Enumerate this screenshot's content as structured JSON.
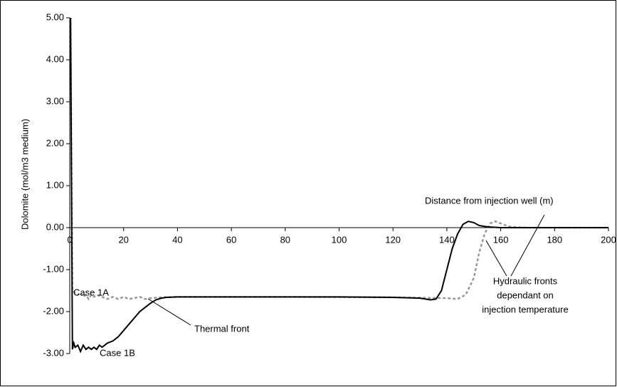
{
  "chart_data": {
    "type": "line",
    "y_label": "Dolomite (mol/m3 medium)",
    "x_label": "Distance from injection well (m)",
    "xlim": [
      0,
      200
    ],
    "xticks": [
      0,
      20,
      40,
      60,
      80,
      100,
      120,
      140,
      160,
      180,
      200
    ],
    "ylim": [
      -3,
      5
    ],
    "yticks": [
      {
        "value": -3,
        "label": "-3.00"
      },
      {
        "value": -2,
        "label": "-2.00"
      },
      {
        "value": -1,
        "label": "-1.00"
      },
      {
        "value": 0,
        "label": "0.00"
      },
      {
        "value": 1,
        "label": "1.00"
      },
      {
        "value": 2,
        "label": "2.00"
      },
      {
        "value": 3,
        "label": "3.00"
      },
      {
        "value": 4,
        "label": "4.00"
      },
      {
        "value": 5,
        "label": "5.00"
      }
    ],
    "series": [
      {
        "name": "Case 1A",
        "color": "#999999",
        "dash": true,
        "x": [
          0.3,
          1,
          2,
          3,
          4,
          5,
          6,
          7,
          8,
          9,
          10,
          12,
          14,
          16,
          18,
          20,
          22,
          24,
          26,
          28,
          30,
          34,
          40,
          80,
          120,
          140,
          144,
          147,
          150,
          152,
          154,
          156,
          158,
          160,
          163,
          166,
          170,
          200
        ],
        "values": [
          5.0,
          -1.5,
          -1.55,
          -1.6,
          -1.55,
          -1.65,
          -1.6,
          -1.7,
          -1.6,
          -1.65,
          -1.6,
          -1.65,
          -1.7,
          -1.65,
          -1.7,
          -1.65,
          -1.7,
          -1.68,
          -1.65,
          -1.7,
          -1.68,
          -1.66,
          -1.65,
          -1.65,
          -1.66,
          -1.68,
          -1.7,
          -1.6,
          -1.2,
          -0.6,
          -0.15,
          0.1,
          0.15,
          0.1,
          0.03,
          0.01,
          0,
          0
        ]
      },
      {
        "name": "Case 1B",
        "color": "#000000",
        "dash": false,
        "x": [
          0.3,
          1,
          1.5,
          2,
          3,
          4,
          5,
          6,
          7,
          8,
          9,
          10,
          11,
          12,
          14,
          16,
          18,
          20,
          22,
          24,
          26,
          28,
          30,
          32,
          34,
          36,
          40,
          60,
          80,
          100,
          120,
          130,
          134,
          136,
          138,
          140,
          142,
          144,
          146,
          148,
          150,
          152,
          155,
          160,
          200
        ],
        "values": [
          5.0,
          -2.9,
          -2.75,
          -2.85,
          -2.8,
          -2.95,
          -2.8,
          -2.9,
          -2.85,
          -2.9,
          -2.85,
          -2.9,
          -2.8,
          -2.85,
          -2.75,
          -2.7,
          -2.6,
          -2.45,
          -2.3,
          -2.15,
          -2.0,
          -1.9,
          -1.8,
          -1.72,
          -1.68,
          -1.66,
          -1.65,
          -1.65,
          -1.65,
          -1.65,
          -1.66,
          -1.68,
          -1.72,
          -1.7,
          -1.5,
          -1.0,
          -0.5,
          -0.15,
          0.08,
          0.15,
          0.12,
          0.05,
          0.02,
          0,
          0
        ]
      }
    ],
    "annotations": [
      [
        "Thermal front"
      ],
      [
        "Hydraulic fronts",
        "dependant on",
        "injection temperature"
      ]
    ]
  }
}
